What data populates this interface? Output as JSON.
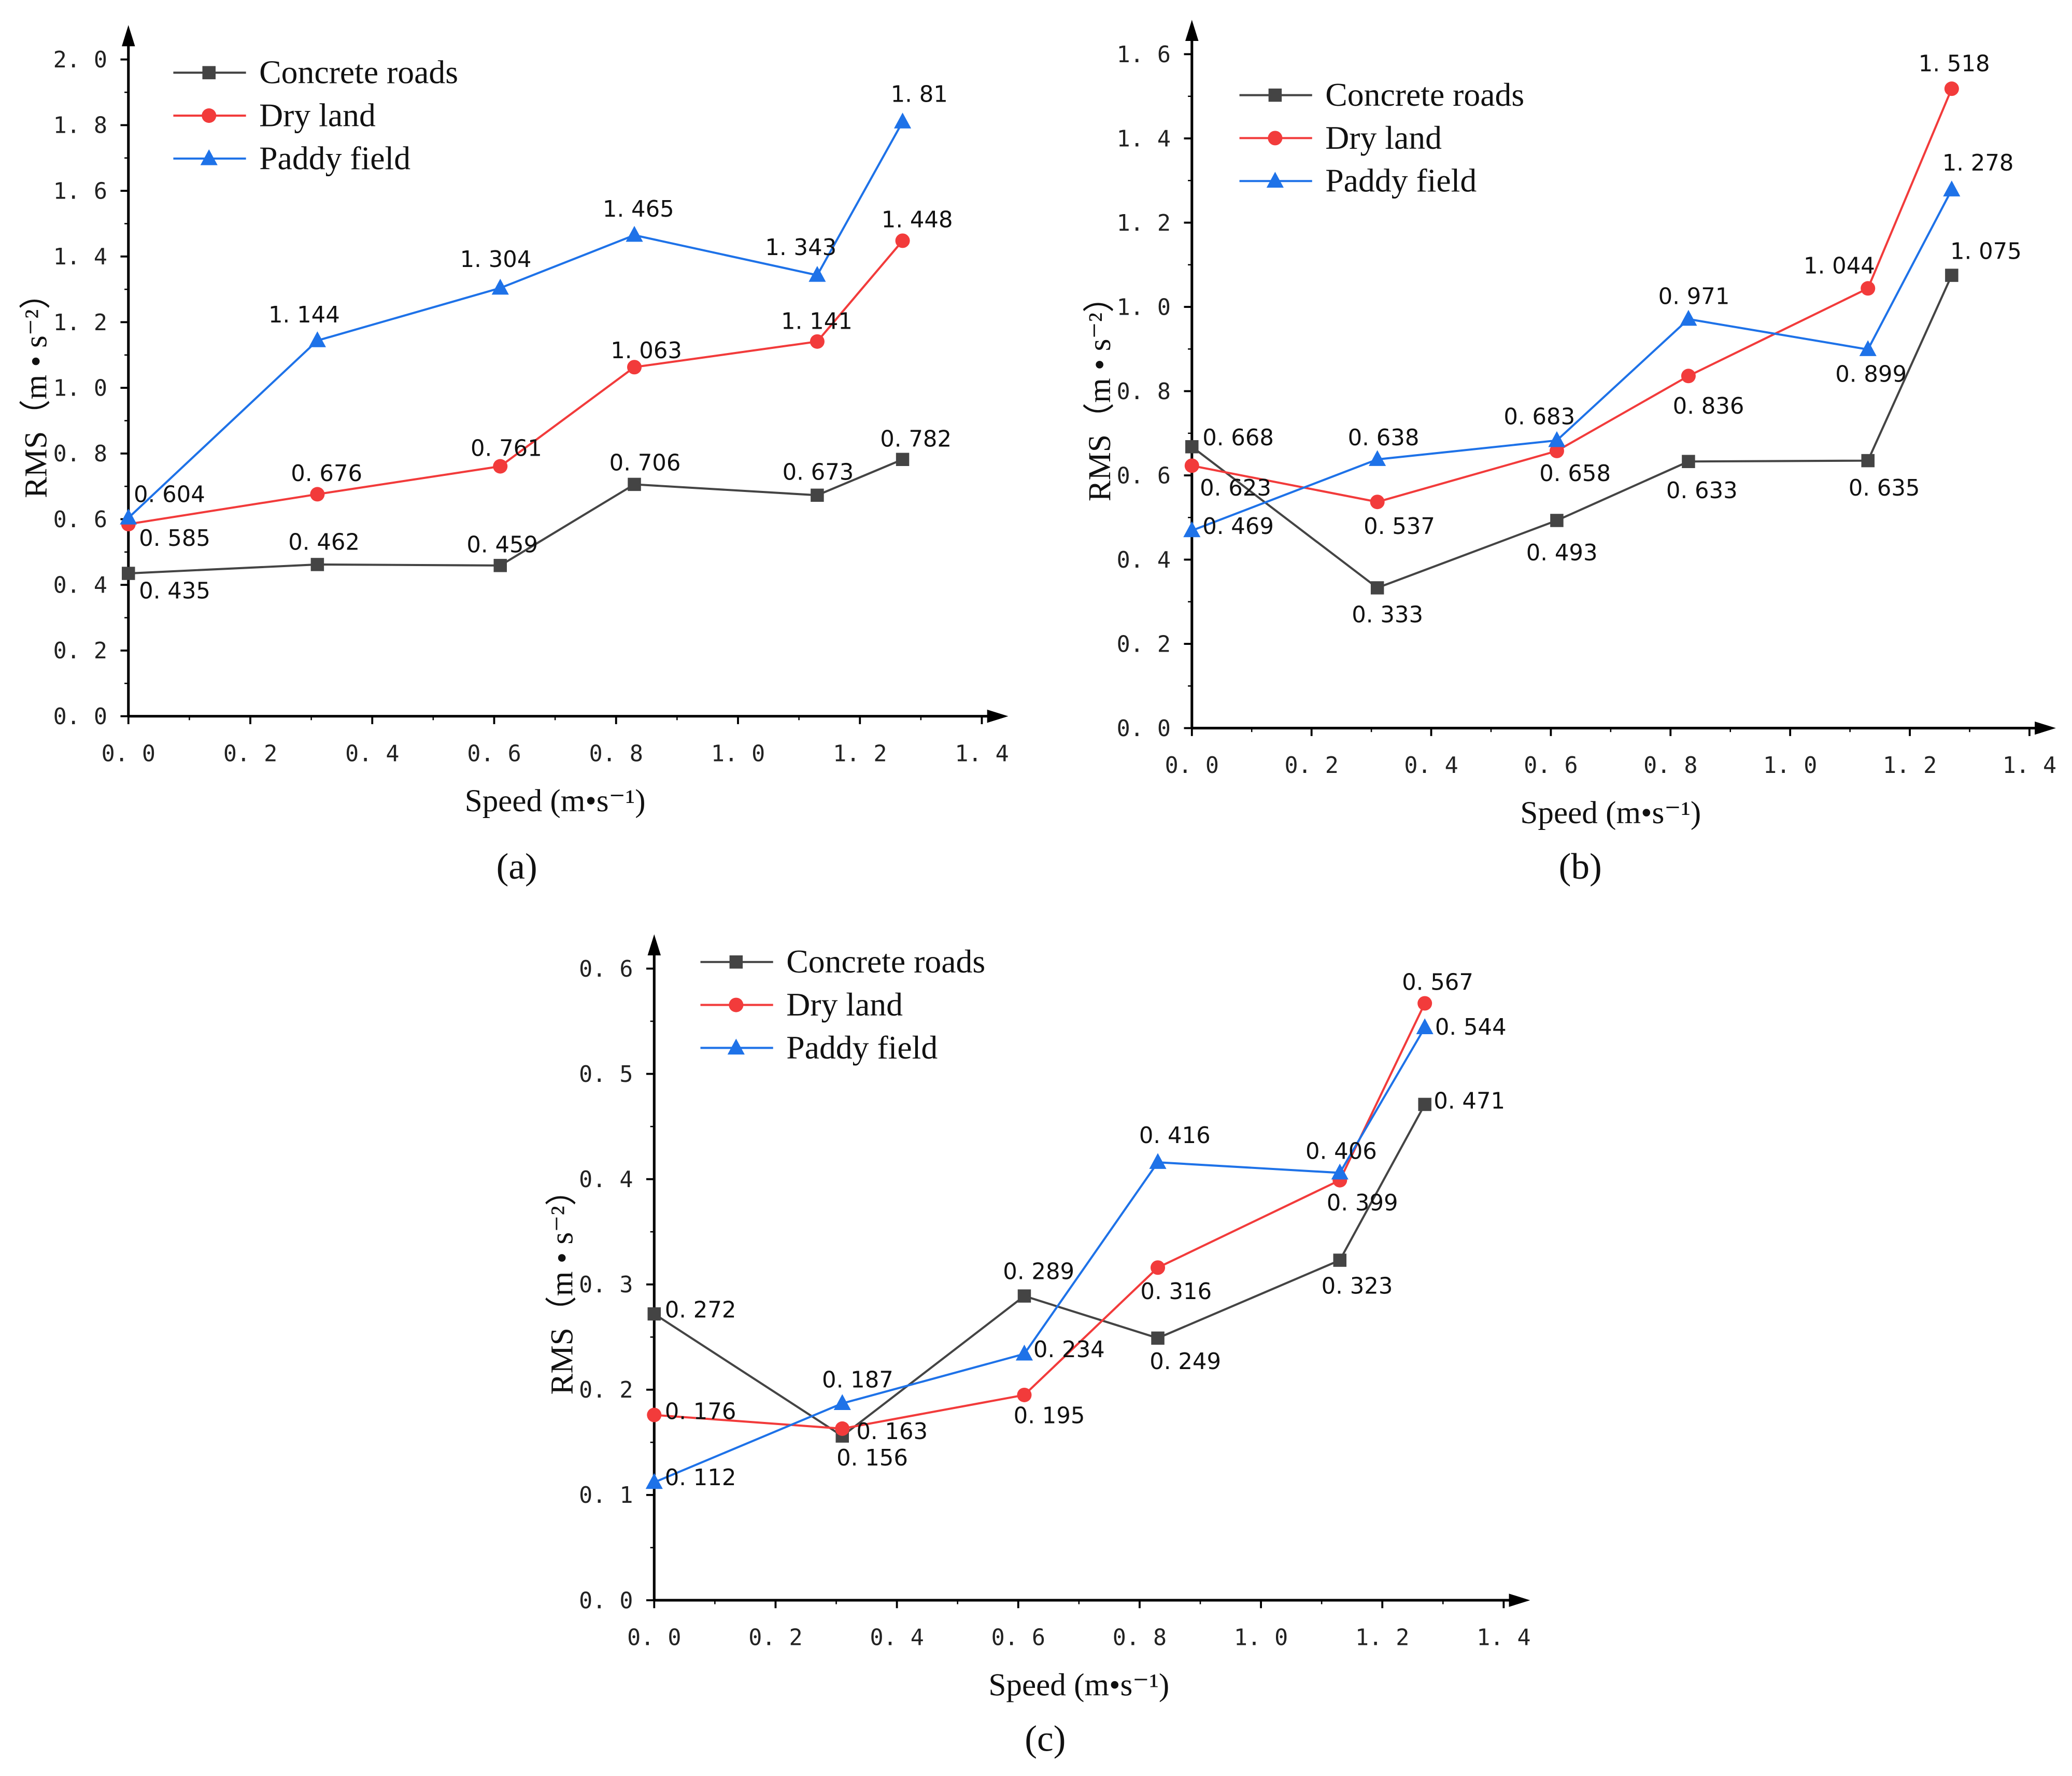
{
  "colors": {
    "Concrete roads": "#444444",
    "Dry land": "#f23b3b",
    "Paddy field": "#1e72e8"
  },
  "chart_data": [
    {
      "type": "line",
      "panel": "(a)",
      "xlabel": "Speed (m•s⁻¹)",
      "ylabel": "RMS（m • s⁻²）",
      "xlim": [
        0,
        1.4
      ],
      "ylim": [
        0,
        2.0
      ],
      "xticks": [
        "0. 0",
        "0. 2",
        "0. 4",
        "0. 6",
        "0. 8",
        "1. 0",
        "1. 2",
        "1. 4"
      ],
      "yticks": [
        "0. 0",
        "0. 2",
        "0. 4",
        "0. 6",
        "0. 8",
        "1. 0",
        "1. 2",
        "1. 4",
        "1. 6",
        "1. 8",
        "2. 0"
      ],
      "x": [
        0,
        0.31,
        0.61,
        0.83,
        1.13,
        1.27
      ],
      "legend": "top-left",
      "series": [
        {
          "name": "Concrete roads",
          "values": [
            0.435,
            0.462,
            0.459,
            0.706,
            0.673,
            0.782
          ],
          "labels": [
            "0. 435",
            "0. 462",
            "0. 459",
            "0. 706",
            "0. 673",
            "0. 782"
          ]
        },
        {
          "name": "Dry land",
          "values": [
            0.585,
            0.676,
            0.761,
            1.063,
            1.141,
            1.448
          ],
          "labels": [
            "0. 585",
            "0. 676",
            "0. 761",
            "1. 063",
            "1. 141",
            "1. 448"
          ]
        },
        {
          "name": "Paddy field",
          "values": [
            0.604,
            1.144,
            1.304,
            1.465,
            1.343,
            1.81
          ],
          "labels": [
            "0. 604",
            "1. 144",
            "1. 304",
            "1. 465",
            "1. 343",
            "1. 81"
          ]
        }
      ]
    },
    {
      "type": "line",
      "panel": "(b)",
      "xlabel": "Speed (m•s⁻¹)",
      "ylabel": "RMS（m • s⁻²）",
      "xlim": [
        0,
        1.4
      ],
      "ylim": [
        0,
        1.6
      ],
      "xticks": [
        "0. 0",
        "0. 2",
        "0. 4",
        "0. 6",
        "0. 8",
        "1. 0",
        "1. 2",
        "1. 4"
      ],
      "yticks": [
        "0. 0",
        "0. 2",
        "0. 4",
        "0. 6",
        "0. 8",
        "1. 0",
        "1. 2",
        "1. 4",
        "1. 6"
      ],
      "x": [
        0,
        0.31,
        0.61,
        0.83,
        1.13,
        1.27
      ],
      "legend": "top-left",
      "series": [
        {
          "name": "Concrete roads",
          "values": [
            0.668,
            0.333,
            0.493,
            0.633,
            0.635,
            1.075
          ],
          "labels": [
            "0. 668",
            "0. 333",
            "0. 493",
            "0. 633",
            "0. 635",
            "1. 075"
          ]
        },
        {
          "name": "Dry land",
          "values": [
            0.623,
            0.537,
            0.658,
            0.836,
            1.044,
            1.518
          ],
          "labels": [
            "0. 623",
            "0. 537",
            "0. 658",
            "0. 836",
            "1. 044",
            "1. 518"
          ]
        },
        {
          "name": "Paddy field",
          "values": [
            0.469,
            0.638,
            0.683,
            0.971,
            0.899,
            1.278
          ],
          "labels": [
            "0. 469",
            "0. 638",
            "0. 683",
            "0. 971",
            "0. 899",
            "1. 278"
          ]
        }
      ]
    },
    {
      "type": "line",
      "panel": "(c)",
      "xlabel": "Speed (m•s⁻¹)",
      "ylabel": "RMS（m • s⁻²）",
      "xlim": [
        0,
        1.4
      ],
      "ylim": [
        0,
        0.6
      ],
      "xticks": [
        "0. 0",
        "0. 2",
        "0. 4",
        "0. 6",
        "0. 8",
        "1. 0",
        "1. 2",
        "1. 4"
      ],
      "yticks": [
        "0. 0",
        "0. 1",
        "0. 2",
        "0. 3",
        "0. 4",
        "0. 5",
        "0. 6"
      ],
      "x": [
        0,
        0.31,
        0.61,
        0.83,
        1.13,
        1.27
      ],
      "legend": "top-left",
      "series": [
        {
          "name": "Concrete roads",
          "values": [
            0.272,
            0.156,
            0.289,
            0.249,
            0.323,
            0.471
          ],
          "labels": [
            "0. 272",
            "0. 156",
            "0. 289",
            "0. 249",
            "0. 323",
            "0. 471"
          ]
        },
        {
          "name": "Dry land",
          "values": [
            0.176,
            0.163,
            0.195,
            0.316,
            0.399,
            0.567
          ],
          "labels": [
            "0. 176",
            "0. 163",
            "0. 195",
            "0. 316",
            "0. 399",
            "0. 567"
          ]
        },
        {
          "name": "Paddy field",
          "values": [
            0.112,
            0.187,
            0.234,
            0.416,
            0.406,
            0.544
          ],
          "labels": [
            "0. 112",
            "0. 187",
            "0. 234",
            "0. 416",
            "0. 406",
            "0. 544"
          ]
        }
      ]
    }
  ]
}
